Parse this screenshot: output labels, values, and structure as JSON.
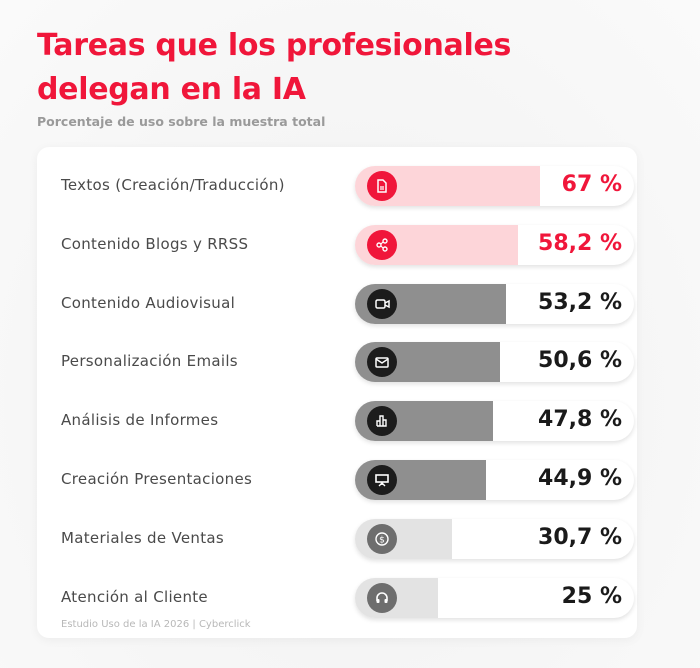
{
  "title_line1": "Tareas que los profesionales",
  "title_line2": "delegan en la IA",
  "subtitle": "Porcentaje de uso sobre la muestra total",
  "footer": "Estudio Uso de la IA 2026 | Cyberclick",
  "colors": {
    "accent": "#f0163a",
    "highlight_fill": "#fdd5d9",
    "mid_fill": "#8f8f8f",
    "low_fill": "#e3e3e3",
    "dark_icon": "#1c1c1c",
    "gray_icon": "#6e6e6e"
  },
  "chart_data": {
    "type": "bar",
    "orientation": "horizontal",
    "title": "Tareas que los profesionales delegan en la IA",
    "subtitle": "Porcentaje de uso sobre la muestra total",
    "unit": "%",
    "categories": [
      "Textos (Creación/Traducción)",
      "Contenido Blogs y RRSS",
      "Contenido Audiovisual",
      "Personalización Emails",
      "Análisis de Informes",
      "Creación Presentaciones",
      "Materiales de Ventas",
      "Atención al Cliente"
    ],
    "values": [
      67,
      58.2,
      53.2,
      50.6,
      47.8,
      44.9,
      30.7,
      25
    ],
    "labels": [
      "67 %",
      "58,2 %",
      "53,2 %",
      "50,6 %",
      "47,8 %",
      "44,9 %",
      "30,7 %",
      "25 %"
    ],
    "tiers": [
      "highlight",
      "highlight",
      "mid",
      "mid",
      "mid",
      "mid",
      "low",
      "low"
    ],
    "icons": [
      "document-icon",
      "share-icon",
      "video-camera-icon",
      "envelope-icon",
      "bar-chart-icon",
      "presentation-icon",
      "dollar-coin-icon",
      "headset-icon"
    ]
  }
}
